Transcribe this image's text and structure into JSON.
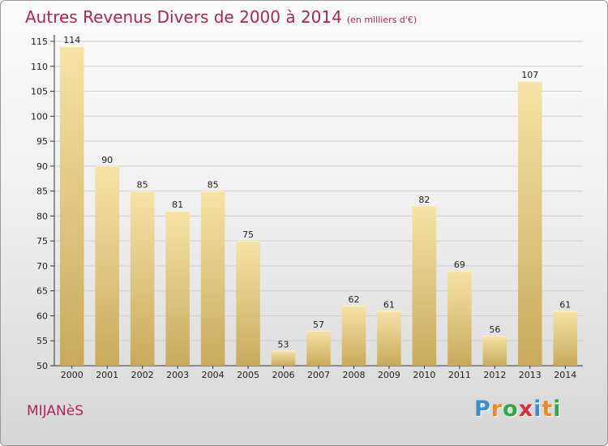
{
  "title": "Autres Revenus Divers de 2000 à 2014",
  "unit": "(en milliers d'€)",
  "commune": "MIJANèS",
  "logo": {
    "letters": [
      "P",
      "r",
      "o",
      "x",
      "i",
      "t",
      "i"
    ],
    "colors": [
      "#3b8fd1",
      "#f08a1c",
      "#2fa84a",
      "#e02b3a",
      "#3b8fd1",
      "#f08a1c",
      "#2fa84a"
    ]
  },
  "colors": {
    "bar": "#e8cf86",
    "bar_light": "#f6e3a6",
    "bar_dark": "#c9aa5c",
    "title": "#b0245a",
    "grid": "#cfcfcf"
  },
  "chart_data": {
    "type": "bar",
    "categories": [
      "2000",
      "2001",
      "2002",
      "2003",
      "2004",
      "2005",
      "2006",
      "2007",
      "2008",
      "2009",
      "2010",
      "2011",
      "2012",
      "2013",
      "2014"
    ],
    "values": [
      114,
      90,
      85,
      81,
      85,
      75,
      53,
      57,
      62,
      61,
      82,
      69,
      56,
      107,
      61
    ],
    "ylim": [
      50,
      115
    ],
    "yticks": [
      50,
      55,
      60,
      65,
      70,
      75,
      80,
      85,
      90,
      95,
      100,
      105,
      110,
      115
    ],
    "grid": true,
    "data_labels": true
  }
}
